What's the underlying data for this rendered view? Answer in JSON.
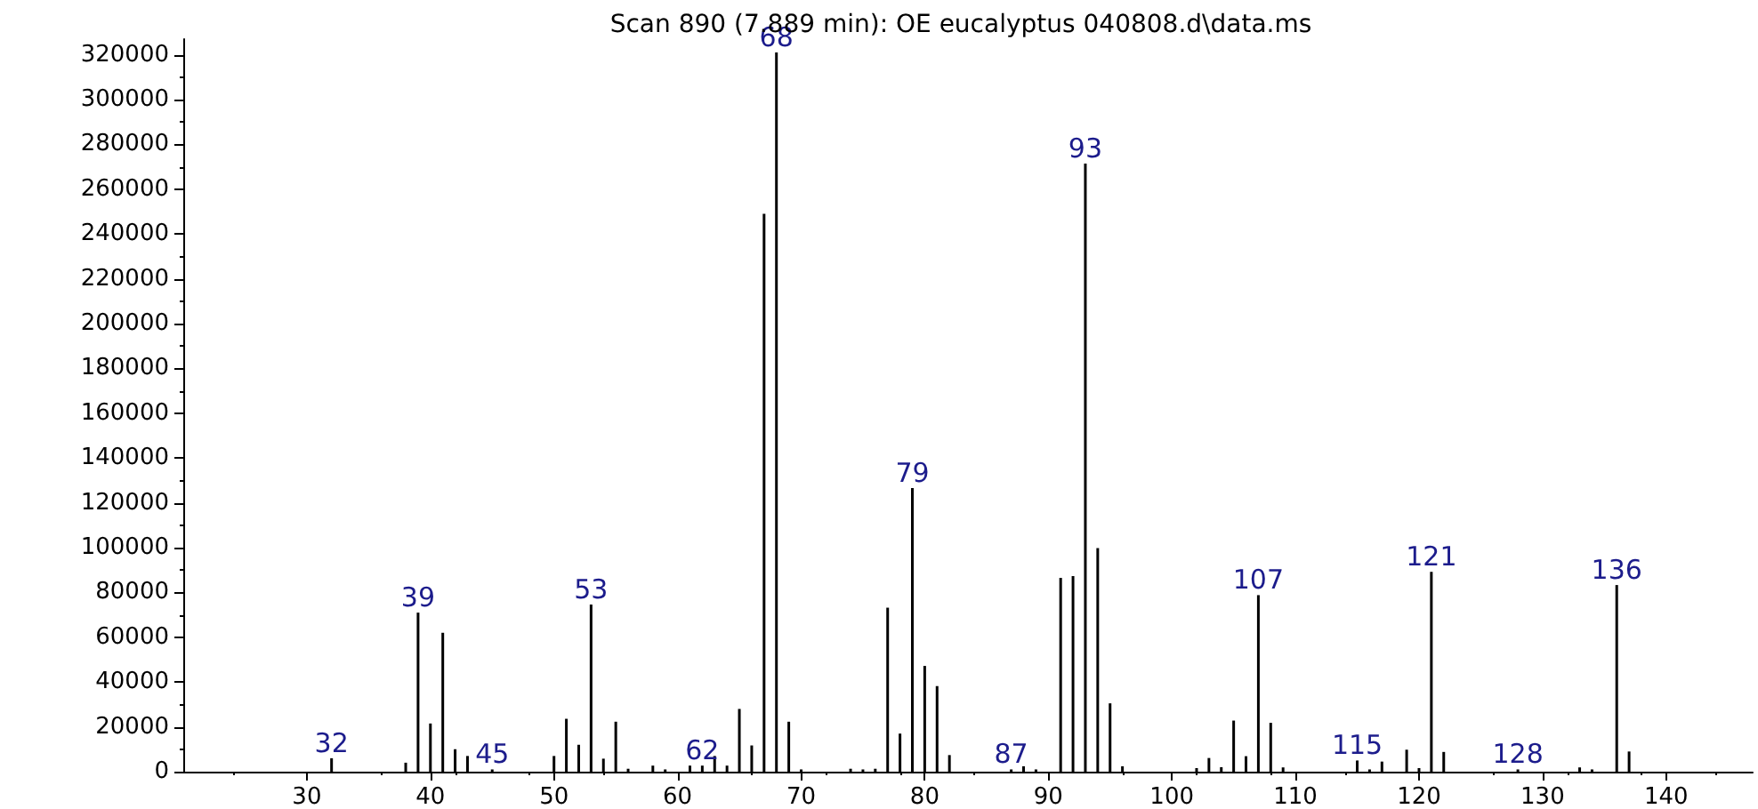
{
  "chart_data": {
    "type": "bar",
    "title": "Scan 890 (7.889 min): OE eucalyptus 040808.d\\data.ms",
    "x": [
      32,
      38,
      39,
      40,
      41,
      42,
      43,
      45,
      50,
      51,
      52,
      53,
      54,
      55,
      56,
      58,
      59,
      61,
      62,
      63,
      64,
      65,
      66,
      67,
      68,
      69,
      70,
      74,
      75,
      76,
      77,
      78,
      79,
      80,
      81,
      82,
      87,
      88,
      89,
      91,
      92,
      93,
      94,
      95,
      96,
      102,
      103,
      104,
      105,
      106,
      107,
      108,
      109,
      115,
      116,
      117,
      119,
      120,
      121,
      122,
      128,
      133,
      134,
      136,
      137
    ],
    "values": [
      6000,
      4000,
      71000,
      21500,
      62000,
      10000,
      7000,
      1000,
      7000,
      23600,
      12000,
      74600,
      5800,
      22300,
      1300,
      2700,
      1000,
      2700,
      2700,
      7000,
      2700,
      28000,
      11700,
      249000,
      321000,
      22300,
      1000,
      1300,
      1000,
      1300,
      73200,
      17000,
      126600,
      47200,
      38200,
      7400,
      1000,
      2400,
      1000,
      86500,
      87300,
      271400,
      99800,
      30500,
      2400,
      1600,
      6100,
      2000,
      22800,
      6900,
      78800,
      21800,
      1900,
      5000,
      1000,
      4500,
      9800,
      1600,
      89200,
      8800,
      1000,
      1900,
      1000,
      83300,
      9000
    ],
    "annotations": [
      {
        "text": "32",
        "x": 32,
        "y": 6000
      },
      {
        "text": "39",
        "x": 39,
        "y": 71000
      },
      {
        "text": "45",
        "x": 45,
        "y": 1000
      },
      {
        "text": "53",
        "x": 53,
        "y": 74600
      },
      {
        "text": "62",
        "x": 62,
        "y": 2700
      },
      {
        "text": "68",
        "x": 68,
        "y": 321000
      },
      {
        "text": "79",
        "x": 79,
        "y": 126600
      },
      {
        "text": "87",
        "x": 87,
        "y": 1000
      },
      {
        "text": "93",
        "x": 93,
        "y": 271400
      },
      {
        "text": "107",
        "x": 107,
        "y": 78800
      },
      {
        "text": "115",
        "x": 115,
        "y": 5000
      },
      {
        "text": "121",
        "x": 121,
        "y": 89200
      },
      {
        "text": "128",
        "x": 128,
        "y": 1000
      },
      {
        "text": "136",
        "x": 136,
        "y": 83300
      }
    ],
    "color": "#000000",
    "xlim": [
      20,
      147
    ],
    "xticks": [
      30,
      40,
      50,
      60,
      70,
      80,
      90,
      100,
      110,
      120,
      130,
      140
    ],
    "ylim": [
      0,
      327000
    ],
    "yticks": [
      0,
      20000,
      40000,
      60000,
      80000,
      100000,
      120000,
      140000,
      160000,
      180000,
      200000,
      220000,
      240000,
      260000,
      280000,
      300000,
      320000
    ],
    "grid": false
  }
}
